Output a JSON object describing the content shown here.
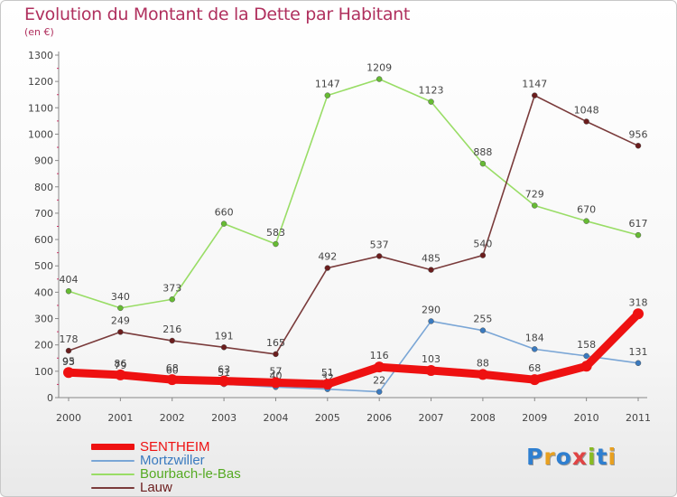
{
  "title": "Evolution du Montant de la Dette par Habitant",
  "subtitle": "(en €)",
  "logo": "Proxiti",
  "chart_data": {
    "type": "line",
    "x": [
      "2000",
      "2001",
      "2002",
      "2003",
      "2004",
      "2005",
      "2006",
      "2007",
      "2008",
      "2009",
      "2010",
      "2011"
    ],
    "ylim": [
      0,
      1300
    ],
    "yticks": [
      0,
      100,
      200,
      300,
      400,
      500,
      600,
      700,
      800,
      900,
      1000,
      1100,
      1200,
      1300
    ],
    "grid": false,
    "legend_position": "bottom-left",
    "series": [
      {
        "name": "Bourbach-le-Bas",
        "color": "#99dd66",
        "dot": "#66bb33",
        "values": [
          404,
          340,
          373,
          660,
          583,
          1147,
          1209,
          1123,
          888,
          729,
          670,
          617
        ],
        "labels": [
          "404",
          "340",
          "373",
          "660",
          "583",
          "1147",
          "1209",
          "1123",
          "888",
          "729",
          "670",
          "617"
        ]
      },
      {
        "name": "Lauw",
        "color": "#7a3b3b",
        "dot": "#6b1d1d",
        "values": [
          178,
          249,
          216,
          191,
          165,
          492,
          537,
          485,
          540,
          1147,
          1048,
          956
        ],
        "labels": [
          "178",
          "249",
          "216",
          "191",
          "165",
          "492",
          "537",
          "485",
          "540",
          "1147",
          "1048",
          "956"
        ]
      },
      {
        "name": "Mortzwiller",
        "color": "#7aa6d6",
        "dot": "#3a7abf",
        "values": [
          93,
          79,
          60,
          51,
          40,
          32,
          22,
          290,
          255,
          184,
          158,
          131
        ],
        "labels": [
          "93",
          "79",
          "60",
          "51",
          "40",
          "32",
          "22",
          "290",
          "255",
          "184",
          "158",
          "131"
        ]
      },
      {
        "name": "SENTHEIM",
        "color": "#ee1111",
        "dot": "#ee1111",
        "values": [
          95,
          86,
          68,
          63,
          57,
          51,
          116,
          103,
          88,
          68,
          119,
          318
        ],
        "labels": [
          "95",
          "86",
          "68",
          "63",
          "57",
          "51",
          "116",
          "103",
          "88",
          "68",
          "",
          "318"
        ]
      }
    ],
    "legend": [
      {
        "name": "SENTHEIM",
        "color": "#ee1111",
        "text_color": "#ee1111",
        "thick": true
      },
      {
        "name": "Mortzwiller",
        "color": "#7aa6d6",
        "text_color": "#3a7abf",
        "thick": false
      },
      {
        "name": "Bourbach-le-Bas",
        "color": "#99dd66",
        "text_color": "#55aa22",
        "thick": false
      },
      {
        "name": "Lauw",
        "color": "#7a3b3b",
        "text_color": "#6b1d1d",
        "thick": false
      }
    ]
  }
}
